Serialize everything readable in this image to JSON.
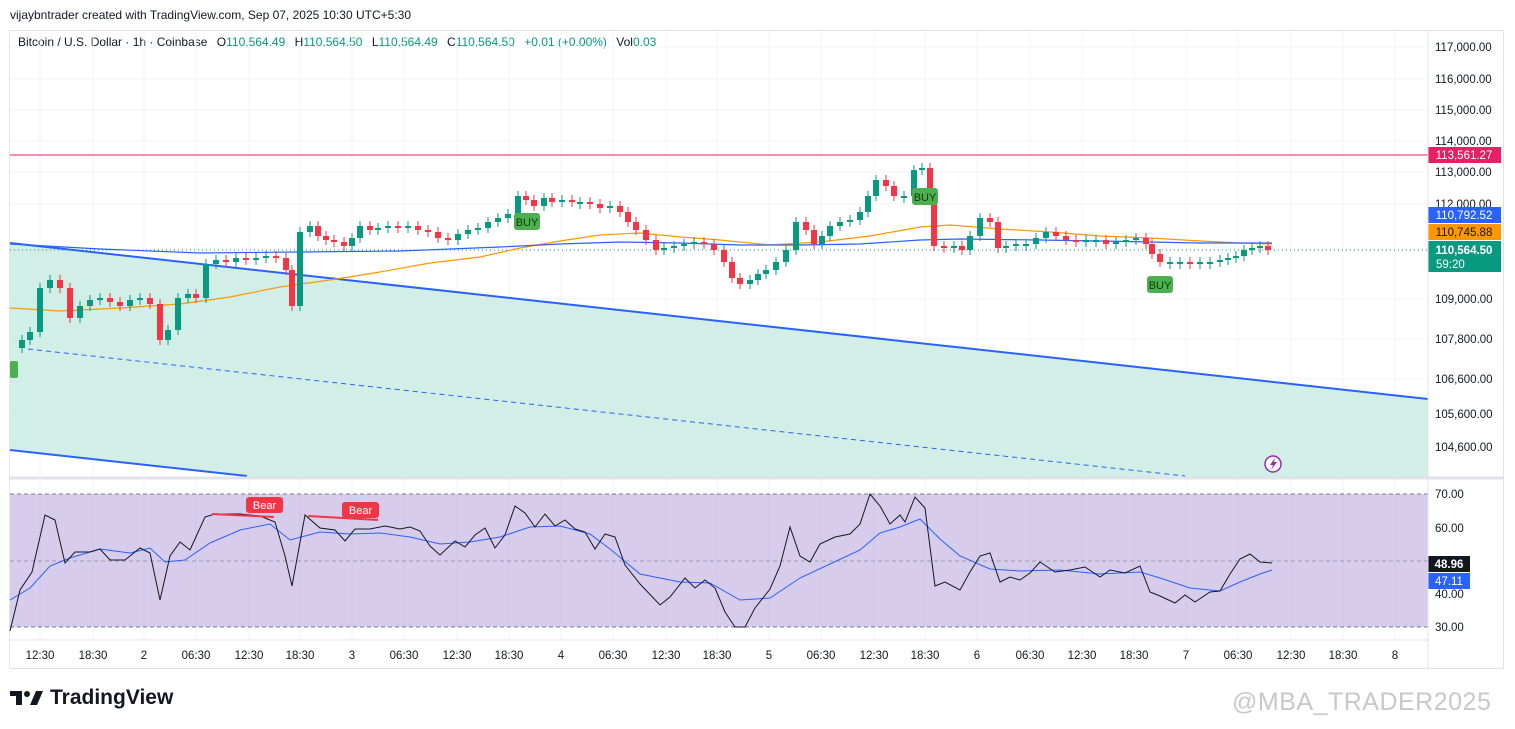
{
  "header": {
    "text": "vijaybntrader created with TradingView.com, Sep 07, 2025 10:30 UTC+5:30"
  },
  "legend": {
    "symbol": "Bitcoin / U.S. Dollar · 1h · Coinbase",
    "o_label": "O",
    "o": "110,564.49",
    "h_label": "H",
    "h": "110,564.50",
    "l_label": "L",
    "l": "110,564.49",
    "c_label": "C",
    "c": "110,564.50",
    "change": "+0.01 (+0.00%)",
    "vol_label": "Vol",
    "vol": "0.03"
  },
  "price_axis": {
    "ticks": [
      "117,000.00",
      "116,000.00",
      "115,000.00",
      "114,000.00",
      "113,000.00",
      "112,000.00",
      "109,000.00",
      "107,800.00",
      "106,600.00",
      "105,600.00",
      "104,600.00"
    ],
    "level_line": "113,561.27",
    "ma_slow": "110,792.52",
    "ma_fast": "110,745.88",
    "last_price": "110,564.50",
    "countdown": "59:20"
  },
  "rsi_axis": {
    "ticks": [
      "70.00",
      "60.00",
      "40.00",
      "30.00"
    ],
    "rsi_value": "48.96",
    "rsi_ma_value": "47.11"
  },
  "time_axis": [
    "12:30",
    "18:30",
    "2",
    "06:30",
    "12:30",
    "18:30",
    "3",
    "06:30",
    "12:30",
    "18:30",
    "4",
    "06:30",
    "12:30",
    "18:30",
    "5",
    "06:30",
    "12:30",
    "18:30",
    "6",
    "06:30",
    "12:30",
    "18:30",
    "7",
    "06:30",
    "12:30",
    "18:30",
    "8"
  ],
  "signals": {
    "buy": "BUY",
    "bear": "Bear"
  },
  "colors": {
    "up": "#089981",
    "down": "#f23645",
    "level": "#e91e63",
    "channel": "#2962ff",
    "ma_fast": "#ff9800",
    "rsi_ma": "#2962ff",
    "rsi_band": "#7e57c2"
  },
  "brand": {
    "name": "TradingView"
  },
  "watermark": "@MBA_TRADER2025"
}
